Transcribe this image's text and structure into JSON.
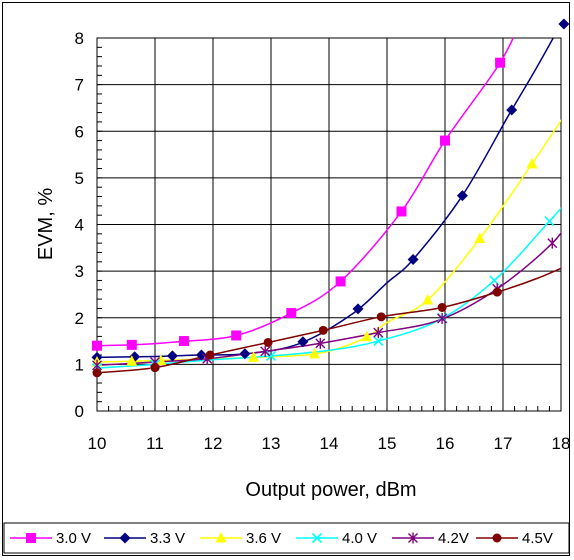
{
  "chart_data": {
    "type": "line",
    "xlabel": "Output power, dBm",
    "ylabel": "EVM, %",
    "xlim": [
      10,
      18
    ],
    "ylim": [
      0,
      8
    ],
    "x_ticks": [
      "10",
      "11",
      "12",
      "13",
      "14",
      "15",
      "16",
      "17",
      "18"
    ],
    "y_ticks": [
      "0",
      "1",
      "2",
      "3",
      "4",
      "5",
      "6",
      "7",
      "8"
    ],
    "grid": true,
    "legend_position": "bottom",
    "series": [
      {
        "name": "3.0 V",
        "color": "#FF00FF",
        "marker": "square",
        "x": [
          9.97,
          10.65,
          11.35,
          12.4,
          13.35,
          14.2,
          15.25,
          16.0,
          16.95,
          17.35
        ],
        "y": [
          1.4,
          1.42,
          1.48,
          1.62,
          2.1,
          2.78,
          4.28,
          5.8,
          7.47,
          8.5
        ],
        "markers_x": [
          10.0,
          10.6,
          11.5,
          12.4,
          13.35,
          14.2,
          15.25,
          16.0,
          16.95
        ]
      },
      {
        "name": "3.3 V",
        "color": "#000080",
        "marker": "diamond",
        "x": [
          10.0,
          11.0,
          11.75,
          12.6,
          13.5,
          14.4,
          15.0,
          15.45,
          16.3,
          17.1,
          17.55,
          18.0
        ],
        "y": [
          1.15,
          1.17,
          1.2,
          1.23,
          1.45,
          2.08,
          2.75,
          3.25,
          4.62,
          6.35,
          7.3,
          8.3
        ],
        "markers_x": [
          10.0,
          10.65,
          11.3,
          11.8,
          12.55,
          13.55,
          14.5,
          15.45,
          16.3,
          17.15,
          18.05
        ]
      },
      {
        "name": "3.6 V",
        "color": "#FFFF00",
        "marker": "triangle",
        "x": [
          10.0,
          11.0,
          12.0,
          12.7,
          13.8,
          14.6,
          15.0,
          15.7,
          16.6,
          17.5,
          18.25
        ],
        "y": [
          1.05,
          1.08,
          1.12,
          1.15,
          1.23,
          1.55,
          1.9,
          2.38,
          3.7,
          5.3,
          6.7
        ],
        "markers_x": [
          10.0,
          10.6,
          11.1,
          12.7,
          13.75,
          14.65,
          15.7,
          16.6,
          17.5
        ]
      },
      {
        "name": "4.0 V",
        "color": "#00FFFF",
        "marker": "x",
        "x": [
          10.0,
          11.0,
          12.0,
          13.0,
          14.0,
          14.85,
          15.9,
          16.85,
          17.75,
          18.25
        ],
        "y": [
          0.92,
          1.0,
          1.1,
          1.18,
          1.3,
          1.5,
          1.95,
          2.8,
          4.0,
          4.7
        ],
        "markers_x": [
          10.0,
          11.0,
          13.0,
          14.85,
          15.95,
          16.85,
          17.8
        ]
      },
      {
        "name": "4.2V",
        "color": "#800080",
        "marker": "star",
        "x": [
          10.0,
          11.0,
          11.9,
          12.9,
          13.85,
          14.85,
          15.9,
          16.9,
          17.85,
          18.25
        ],
        "y": [
          0.98,
          1.05,
          1.12,
          1.28,
          1.45,
          1.68,
          1.95,
          2.62,
          3.6,
          4.3
        ],
        "markers_x": [
          10.0,
          11.0,
          11.9,
          12.9,
          13.85,
          14.85,
          15.95,
          16.9,
          17.85
        ]
      },
      {
        "name": "4.5V",
        "color": "#800000",
        "marker": "circle",
        "x": [
          10.0,
          11.0,
          11.95,
          12.95,
          13.9,
          14.9,
          15.95,
          16.9,
          17.6,
          18.25
        ],
        "y": [
          0.82,
          0.93,
          1.2,
          1.47,
          1.73,
          2.02,
          2.22,
          2.55,
          2.85,
          3.2
        ],
        "markers_x": [
          10.0,
          11.0,
          11.95,
          12.95,
          13.9,
          14.9,
          15.95,
          16.9
        ]
      }
    ]
  }
}
